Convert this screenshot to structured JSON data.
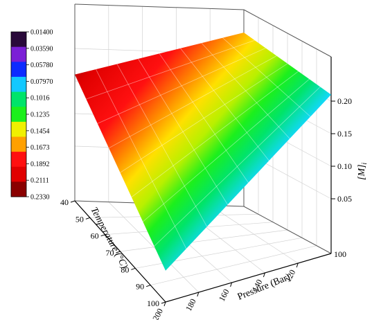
{
  "chart_data": {
    "type": "surface3d",
    "title": "",
    "x_axis": {
      "label": "Pressure (Bar)",
      "range": [
        100,
        200
      ],
      "ticks": [
        {
          "value": 120,
          "label": "120"
        },
        {
          "value": 140,
          "label": "140"
        },
        {
          "value": 160,
          "label": "160"
        },
        {
          "value": 180,
          "label": "180"
        },
        {
          "value": 200,
          "label": "200"
        }
      ],
      "end_label": "100"
    },
    "y_axis": {
      "label": "Temperature (°C)",
      "range": [
        40,
        100
      ],
      "ticks": [
        {
          "value": 40,
          "label": "40"
        },
        {
          "value": 50,
          "label": "50"
        },
        {
          "value": 60,
          "label": "60"
        },
        {
          "value": 70,
          "label": "70"
        },
        {
          "value": 80,
          "label": "80"
        },
        {
          "value": 90,
          "label": "90"
        },
        {
          "value": 100,
          "label": "100"
        }
      ]
    },
    "z_axis": {
      "label": "[M]",
      "label_subscript": "i",
      "range": [
        0.014,
        0.233
      ],
      "ticks": [
        {
          "value": 0.05,
          "label": "0.05"
        },
        {
          "value": 0.1,
          "label": "0.10"
        },
        {
          "value": 0.15,
          "label": "0.15"
        },
        {
          "value": 0.2,
          "label": "0.20"
        }
      ]
    },
    "surface_corners": [
      {
        "pressure": 100,
        "temperature": 40,
        "value": 0.233
      },
      {
        "pressure": 200,
        "temperature": 40,
        "value": 0.16
      },
      {
        "pressure": 200,
        "temperature": 100,
        "value": 0.014
      },
      {
        "pressure": 100,
        "temperature": 100,
        "value": 0.21
      }
    ],
    "colorbar": {
      "levels": [
        "0.01400",
        "0.03590",
        "0.05780",
        "0.07970",
        "0.1016",
        "0.1235",
        "0.1454",
        "0.1673",
        "0.1892",
        "0.2111",
        "0.2330"
      ],
      "colors": [
        "#2a0a3a",
        "#7b1fd6",
        "#0d2bff",
        "#12c8ff",
        "#00e46a",
        "#1cf01c",
        "#f0f000",
        "#ffa000",
        "#ff1010",
        "#e00000",
        "#8a0000"
      ]
    },
    "grid": true,
    "legend": "colorbar-left"
  }
}
